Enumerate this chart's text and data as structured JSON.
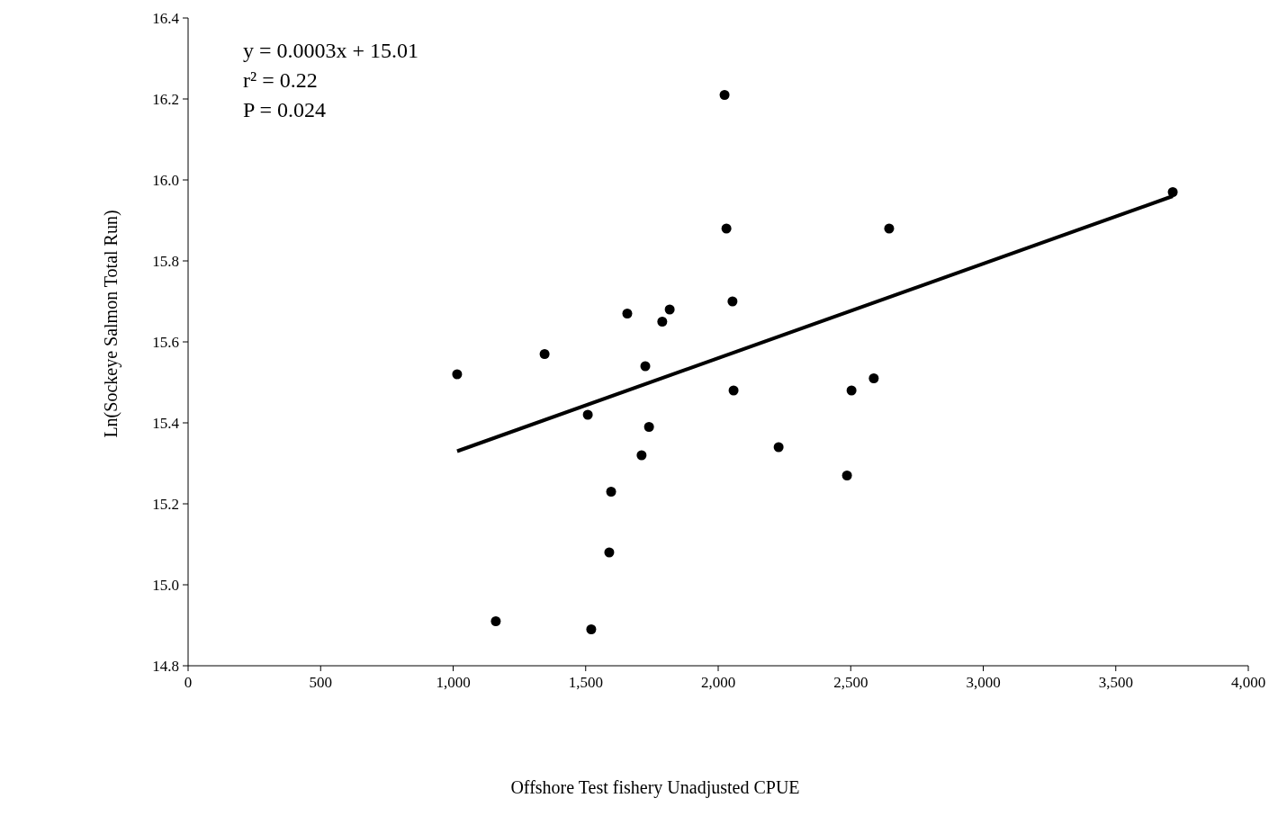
{
  "chart_data": {
    "type": "scatter",
    "xlabel": "Offshore Test fishery Unadjusted CPUE",
    "ylabel": "Ln(Sockeye Salmon Total Run)",
    "annotations": [
      "y = 0.0003x + 15.01",
      "r² = 0.22",
      "P = 0.024"
    ],
    "xlim": [
      0,
      4000
    ],
    "xticks": [
      {
        "value": 0,
        "label": "0"
      },
      {
        "value": 500,
        "label": "500"
      },
      {
        "value": 1000,
        "label": "1,000"
      },
      {
        "value": 1500,
        "label": "1,500"
      },
      {
        "value": 2000,
        "label": "2,000"
      },
      {
        "value": 2500,
        "label": "2,500"
      },
      {
        "value": 3000,
        "label": "3,000"
      },
      {
        "value": 3500,
        "label": "3,500"
      },
      {
        "value": 4000,
        "label": "4,000"
      }
    ],
    "ylim": [
      14.8,
      16.4
    ],
    "yticks": [
      {
        "value": 14.8,
        "label": "14.8"
      },
      {
        "value": 15,
        "label": "15.0"
      },
      {
        "value": 15.2,
        "label": "15.2"
      },
      {
        "value": 15.4,
        "label": "15.4"
      },
      {
        "value": 15.6,
        "label": "15.6"
      },
      {
        "value": 15.8,
        "label": "15.8"
      },
      {
        "value": 16,
        "label": "16.0"
      },
      {
        "value": 16.2,
        "label": "16.2"
      },
      {
        "value": 16.4,
        "label": "16.4"
      }
    ],
    "grid": false,
    "marker": "circle",
    "series": [
      {
        "type": "scatter",
        "color": "#000000",
        "x": [
          1015,
          1161,
          1345,
          1508,
          1521,
          1657,
          1596,
          1589,
          1725,
          1711,
          1739,
          1789,
          1817,
          2024,
          2031,
          2054,
          2058,
          2228,
          2486,
          2503,
          2587,
          2645,
          3715
        ],
        "values": [
          15.52,
          14.91,
          15.57,
          15.42,
          14.89,
          15.67,
          15.23,
          15.08,
          15.54,
          15.32,
          15.39,
          15.65,
          15.68,
          16.21,
          15.88,
          15.7,
          15.48,
          15.34,
          15.27,
          15.48,
          15.51,
          15.88,
          15.97
        ]
      },
      {
        "type": "line",
        "color": "#000000",
        "x": [
          1015,
          3715
        ],
        "values": [
          15.33,
          15.96
        ],
        "marker": "none",
        "line_style": "solid"
      }
    ]
  }
}
